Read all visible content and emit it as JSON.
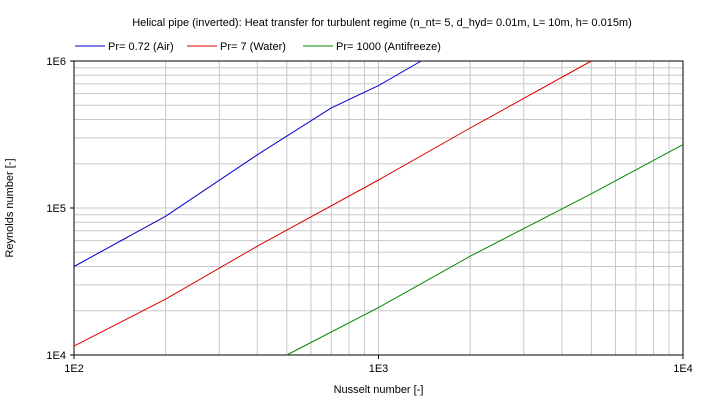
{
  "chart_data": {
    "type": "line",
    "title": "Helical pipe (inverted): Heat transfer for turbulent regime (n_nt= 5, d_hyd= 0.01m, L= 10m, h= 0.015m)",
    "xlabel": "Nusselt number [-]",
    "ylabel": "Reynolds number [-]",
    "x_scale": "log",
    "y_scale": "log",
    "xlim": [
      100,
      10000
    ],
    "ylim": [
      10000,
      1000000
    ],
    "x_ticks": [
      {
        "value": 100,
        "label": "1E2"
      },
      {
        "value": 1000,
        "label": "1E3"
      },
      {
        "value": 10000,
        "label": "1E4"
      }
    ],
    "y_ticks": [
      {
        "value": 10000,
        "label": "1E4"
      },
      {
        "value": 100000,
        "label": "1E5"
      },
      {
        "value": 1000000,
        "label": "1E6"
      }
    ],
    "grid": true,
    "legend_position": "top",
    "series": [
      {
        "name": "Pr= 0.72 (Air)",
        "color": "#0000cc",
        "points": [
          [
            100,
            40000
          ],
          [
            200,
            88000
          ],
          [
            400,
            230000
          ],
          [
            700,
            480000
          ],
          [
            1000,
            680000
          ],
          [
            1380,
            1000000
          ]
        ]
      },
      {
        "name": "Pr= 7 (Water)",
        "color": "#dd0000",
        "points": [
          [
            100,
            11500
          ],
          [
            200,
            24000
          ],
          [
            400,
            55000
          ],
          [
            1000,
            155000
          ],
          [
            2000,
            350000
          ],
          [
            5000,
            1000000
          ]
        ]
      },
      {
        "name": "Pr= 1000 (Antifreeze)",
        "color": "#008800",
        "points": [
          [
            500,
            10000
          ],
          [
            1000,
            21000
          ],
          [
            2000,
            47000
          ],
          [
            5000,
            125000
          ],
          [
            10000,
            270000
          ]
        ]
      }
    ]
  }
}
